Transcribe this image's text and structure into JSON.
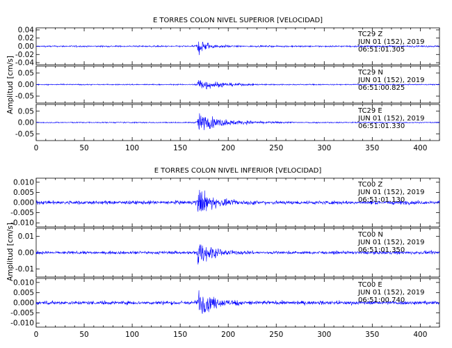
{
  "chart_data": [
    {
      "type": "line",
      "title": "E TORRES COLON NIVEL SUPERIOR [VELOCIDAD]",
      "ylabel": "Amplitud [cm/s]",
      "xlim": [
        0,
        420
      ],
      "xticks": [
        "0",
        "50",
        "100",
        "150",
        "200",
        "250",
        "300",
        "350",
        "400"
      ],
      "series": [
        {
          "name": "TC29 Z",
          "date": "JUN 01 (152), 2019",
          "time": "06:51:01.305",
          "ylim": [
            -0.045,
            0.045
          ],
          "yticks": [
            "0.04",
            "0.02",
            "0.00",
            "-0.02",
            "-0.04"
          ],
          "noise": 0.003,
          "event_onset": 168,
          "event_peak": 0.04,
          "event_decay": 9
        },
        {
          "name": "TC29 N",
          "date": "JUN 01 (152), 2019",
          "time": "06:51:00.825",
          "ylim": [
            -0.08,
            0.08
          ],
          "yticks": [
            "0.05",
            "0.00",
            "-0.05"
          ],
          "noise": 0.004,
          "event_onset": 168,
          "event_peak": 0.05,
          "event_decay": 20
        },
        {
          "name": "TC29 E",
          "date": "JUN 01 (152), 2019",
          "time": "06:51:01.330",
          "ylim": [
            -0.08,
            0.08
          ],
          "yticks": [
            "0.05",
            "0.00",
            "-0.05"
          ],
          "noise": 0.004,
          "event_onset": 168,
          "event_peak": 0.06,
          "event_decay": 28
        }
      ]
    },
    {
      "type": "line",
      "title": "E TORRES COLON NIVEL INFERIOR [VELOCIDAD]",
      "ylabel": "Amplitud [cm/s]",
      "xlim": [
        0,
        420
      ],
      "xticks": [
        "0",
        "50",
        "100",
        "150",
        "200",
        "250",
        "300",
        "350",
        "400"
      ],
      "series": [
        {
          "name": "TC00 Z",
          "date": "JUN 01 (152), 2019",
          "time": "06:51:01.130",
          "ylim": [
            -0.012,
            0.012
          ],
          "yticks": [
            "0.010",
            "0.005",
            "0.000",
            "-0.005",
            "-0.010"
          ],
          "noise": 0.0015,
          "event_onset": 168,
          "event_peak": 0.011,
          "event_decay": 14
        },
        {
          "name": "TC00 N",
          "date": "JUN 01 (152), 2019",
          "time": "06:51:01.350",
          "ylim": [
            -0.015,
            0.015
          ],
          "yticks": [
            "0.01",
            "0.00",
            "-0.01"
          ],
          "noise": 0.0015,
          "event_onset": 168,
          "event_peak": 0.013,
          "event_decay": 14
        },
        {
          "name": "TC00 E",
          "date": "JUN 01 (152), 2019",
          "time": "06:51:00.740",
          "ylim": [
            -0.012,
            0.012
          ],
          "yticks": [
            "0.010",
            "0.005",
            "0.000",
            "-0.005",
            "-0.010"
          ],
          "noise": 0.0015,
          "event_onset": 168,
          "event_peak": 0.011,
          "event_decay": 16
        }
      ]
    }
  ],
  "colors": {
    "trace": "#0000ff",
    "axes": "#000000",
    "background": "#ffffff"
  }
}
